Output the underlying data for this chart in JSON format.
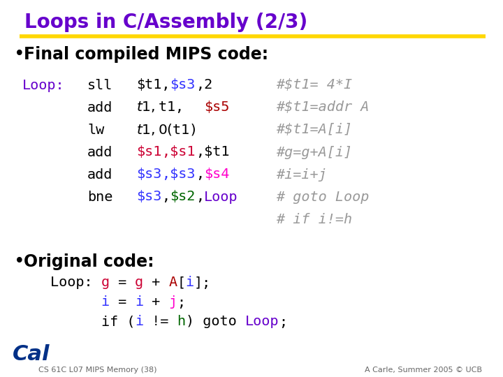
{
  "title": "Loops in C/Assembly (2/3)",
  "title_color": "#6600CC",
  "title_underline_color": "#FFD700",
  "bg_color": "#FFFFFF",
  "bullet1": "Final compiled MIPS code:",
  "bullet2": "Original code:",
  "footer_left": "CS 61C L07 MIPS Memory (38)",
  "footer_right": "A Carle, Summer 2005 © UCB",
  "purple": "#6600CC",
  "black": "#000000",
  "dark_blue": "#0000CC",
  "blue": "#3333FF",
  "green": "#009900",
  "dark_green": "#006600",
  "magenta": "#CC0000",
  "pink": "#FF00CC",
  "comment_color": "#999999",
  "red_magenta": "#CC0033",
  "loop_label_color": "#6600CC",
  "s3_color": "#3333FF",
  "s5_color": "#AA0000",
  "s1_color": "#CC0033",
  "s2_color": "#006600",
  "s4_color": "#FF00CC",
  "loop_word_color": "#6600CC",
  "g_color": "#CC0033",
  "A_color": "#AA0000",
  "i_color": "#3333FF",
  "j_color": "#FF00CC",
  "h_color": "#006600"
}
